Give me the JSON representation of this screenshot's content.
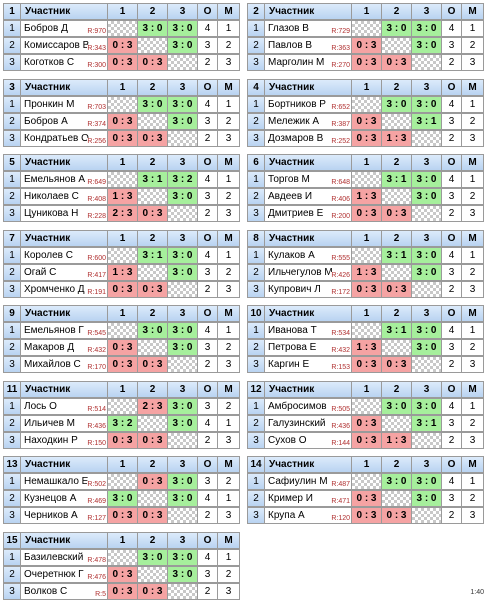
{
  "columns": [
    "Участник",
    "1",
    "2",
    "3",
    "О",
    "М"
  ],
  "groups": [
    {
      "number": "1",
      "players": [
        {
          "num": "1",
          "name": "Бобров Д",
          "rating": "R:970",
          "scores": [
            null,
            "3 : 0",
            "3 : 0"
          ],
          "points": "4",
          "place": "1"
        },
        {
          "num": "2",
          "name": "Комиссаров В",
          "rating": "R:343",
          "scores": [
            "0 : 3",
            null,
            "3 : 0"
          ],
          "points": "3",
          "place": "2"
        },
        {
          "num": "3",
          "name": "Коготков С",
          "rating": "R:300",
          "scores": [
            "0 : 3",
            "0 : 3",
            null
          ],
          "points": "2",
          "place": "3"
        }
      ]
    },
    {
      "number": "2",
      "players": [
        {
          "num": "1",
          "name": "Глазов В",
          "rating": "R:729",
          "scores": [
            null,
            "3 : 0",
            "3 : 0"
          ],
          "points": "4",
          "place": "1"
        },
        {
          "num": "2",
          "name": "Павлов В",
          "rating": "R:363",
          "scores": [
            "0 : 3",
            null,
            "3 : 0"
          ],
          "points": "3",
          "place": "2"
        },
        {
          "num": "3",
          "name": "Марголин М",
          "rating": "R:270",
          "scores": [
            "0 : 3",
            "0 : 3",
            null
          ],
          "points": "2",
          "place": "3"
        }
      ]
    },
    {
      "number": "3",
      "players": [
        {
          "num": "1",
          "name": "Пронкин М",
          "rating": "R:703",
          "scores": [
            null,
            "3 : 0",
            "3 : 0"
          ],
          "points": "4",
          "place": "1"
        },
        {
          "num": "2",
          "name": "Бобров А",
          "rating": "R:374",
          "scores": [
            "0 : 3",
            null,
            "3 : 0"
          ],
          "points": "3",
          "place": "2"
        },
        {
          "num": "3",
          "name": "Кондратьев О",
          "rating": "R:256",
          "scores": [
            "0 : 3",
            "0 : 3",
            null
          ],
          "points": "2",
          "place": "3"
        }
      ]
    },
    {
      "number": "4",
      "players": [
        {
          "num": "1",
          "name": "Бортников Р",
          "rating": "R:652",
          "scores": [
            null,
            "3 : 0",
            "3 : 0"
          ],
          "points": "4",
          "place": "1"
        },
        {
          "num": "2",
          "name": "Мележик А",
          "rating": "R:387",
          "scores": [
            "0 : 3",
            null,
            "3 : 1"
          ],
          "points": "3",
          "place": "2"
        },
        {
          "num": "3",
          "name": "Дозмаров В",
          "rating": "R:252",
          "scores": [
            "0 : 3",
            "1 : 3",
            null
          ],
          "points": "2",
          "place": "3"
        }
      ]
    },
    {
      "number": "5",
      "players": [
        {
          "num": "1",
          "name": "Емельянов А",
          "rating": "R:649",
          "scores": [
            null,
            "3 : 1",
            "3 : 2"
          ],
          "points": "4",
          "place": "1"
        },
        {
          "num": "2",
          "name": "Николаев С",
          "rating": "R:408",
          "scores": [
            "1 : 3",
            null,
            "3 : 0"
          ],
          "points": "3",
          "place": "2"
        },
        {
          "num": "3",
          "name": "Цуникова Н",
          "rating": "R:228",
          "scores": [
            "2 : 3",
            "0 : 3",
            null
          ],
          "points": "2",
          "place": "3"
        }
      ]
    },
    {
      "number": "6",
      "players": [
        {
          "num": "1",
          "name": "Торгов М",
          "rating": "R:648",
          "scores": [
            null,
            "3 : 1",
            "3 : 0"
          ],
          "points": "4",
          "place": "1"
        },
        {
          "num": "2",
          "name": "Авдеев И",
          "rating": "R:406",
          "scores": [
            "1 : 3",
            null,
            "3 : 0"
          ],
          "points": "3",
          "place": "2"
        },
        {
          "num": "3",
          "name": "Дмитриев Е",
          "rating": "R:200",
          "scores": [
            "0 : 3",
            "0 : 3",
            null
          ],
          "points": "2",
          "place": "3"
        }
      ]
    },
    {
      "number": "7",
      "players": [
        {
          "num": "1",
          "name": "Королев С",
          "rating": "R:600",
          "scores": [
            null,
            "3 : 1",
            "3 : 0"
          ],
          "points": "4",
          "place": "1"
        },
        {
          "num": "2",
          "name": "Огай С",
          "rating": "R:417",
          "scores": [
            "1 : 3",
            null,
            "3 : 0"
          ],
          "points": "3",
          "place": "2"
        },
        {
          "num": "3",
          "name": "Хромченко Д",
          "rating": "R:191",
          "scores": [
            "0 : 3",
            "0 : 3",
            null
          ],
          "points": "2",
          "place": "3"
        }
      ]
    },
    {
      "number": "8",
      "players": [
        {
          "num": "1",
          "name": "Кулаков А",
          "rating": "R:555",
          "scores": [
            null,
            "3 : 1",
            "3 : 0"
          ],
          "points": "4",
          "place": "1"
        },
        {
          "num": "2",
          "name": "Ильчегулов М",
          "rating": "R:426",
          "scores": [
            "1 : 3",
            null,
            "3 : 0"
          ],
          "points": "3",
          "place": "2"
        },
        {
          "num": "3",
          "name": "Купрович Л",
          "rating": "R:172",
          "scores": [
            "0 : 3",
            "0 : 3",
            null
          ],
          "points": "2",
          "place": "3"
        }
      ]
    },
    {
      "number": "9",
      "players": [
        {
          "num": "1",
          "name": "Емельянов Г",
          "rating": "R:545",
          "scores": [
            null,
            "3 : 0",
            "3 : 0"
          ],
          "points": "4",
          "place": "1"
        },
        {
          "num": "2",
          "name": "Макаров Д",
          "rating": "R:432",
          "scores": [
            "0 : 3",
            null,
            "3 : 0"
          ],
          "points": "3",
          "place": "2"
        },
        {
          "num": "3",
          "name": "Михайлов С",
          "rating": "R:170",
          "scores": [
            "0 : 3",
            "0 : 3",
            null
          ],
          "points": "2",
          "place": "3"
        }
      ]
    },
    {
      "number": "10",
      "players": [
        {
          "num": "1",
          "name": "Иванова Т",
          "rating": "R:534",
          "scores": [
            null,
            "3 : 1",
            "3 : 0"
          ],
          "points": "4",
          "place": "1"
        },
        {
          "num": "2",
          "name": "Петрова Е",
          "rating": "R:432",
          "scores": [
            "1 : 3",
            null,
            "3 : 0"
          ],
          "points": "3",
          "place": "2"
        },
        {
          "num": "3",
          "name": "Каргин Е",
          "rating": "R:153",
          "scores": [
            "0 : 3",
            "0 : 3",
            null
          ],
          "points": "2",
          "place": "3"
        }
      ]
    },
    {
      "number": "11",
      "players": [
        {
          "num": "1",
          "name": "Лось О",
          "rating": "R:514",
          "scores": [
            null,
            "2 : 3",
            "3 : 0"
          ],
          "points": "3",
          "place": "2"
        },
        {
          "num": "2",
          "name": "Ильичев М",
          "rating": "R:436",
          "scores": [
            "3 : 2",
            null,
            "3 : 0"
          ],
          "points": "4",
          "place": "1"
        },
        {
          "num": "3",
          "name": "Находкин Р",
          "rating": "R:150",
          "scores": [
            "0 : 3",
            "0 : 3",
            null
          ],
          "points": "2",
          "place": "3"
        }
      ]
    },
    {
      "number": "12",
      "players": [
        {
          "num": "1",
          "name": "Амбросимов",
          "rating": "R:505",
          "scores": [
            null,
            "3 : 0",
            "3 : 0"
          ],
          "points": "4",
          "place": "1"
        },
        {
          "num": "2",
          "name": "Галузинский",
          "rating": "R:436",
          "scores": [
            "0 : 3",
            null,
            "3 : 1"
          ],
          "points": "3",
          "place": "2"
        },
        {
          "num": "3",
          "name": "Сухов О",
          "rating": "R:144",
          "scores": [
            "0 : 3",
            "1 : 3",
            null
          ],
          "points": "2",
          "place": "3"
        }
      ]
    },
    {
      "number": "13",
      "players": [
        {
          "num": "1",
          "name": "Немашкало Е",
          "rating": "R:502",
          "scores": [
            null,
            "0 : 3",
            "3 : 0"
          ],
          "points": "3",
          "place": "2"
        },
        {
          "num": "2",
          "name": "Кузнецов А",
          "rating": "R:469",
          "scores": [
            "3 : 0",
            null,
            "3 : 0"
          ],
          "points": "4",
          "place": "1"
        },
        {
          "num": "3",
          "name": "Черников А",
          "rating": "R:127",
          "scores": [
            "0 : 3",
            "0 : 3",
            null
          ],
          "points": "2",
          "place": "3"
        }
      ]
    },
    {
      "number": "14",
      "players": [
        {
          "num": "1",
          "name": "Сафиулин М",
          "rating": "R:487",
          "scores": [
            null,
            "3 : 0",
            "3 : 0"
          ],
          "points": "4",
          "place": "1"
        },
        {
          "num": "2",
          "name": "Кример И",
          "rating": "R:471",
          "scores": [
            "0 : 3",
            null,
            "3 : 0"
          ],
          "points": "3",
          "place": "2"
        },
        {
          "num": "3",
          "name": "Крупа А",
          "rating": "R:120",
          "scores": [
            "0 : 3",
            "0 : 3",
            null
          ],
          "points": "2",
          "place": "3"
        }
      ]
    },
    {
      "number": "15",
      "players": [
        {
          "num": "1",
          "name": "Базилевский",
          "rating": "R:478",
          "scores": [
            null,
            "3 : 0",
            "3 : 0"
          ],
          "points": "4",
          "place": "1"
        },
        {
          "num": "2",
          "name": "Очеретнюк Г",
          "rating": "R:476",
          "scores": [
            "0 : 3",
            null,
            "3 : 0"
          ],
          "points": "3",
          "place": "2"
        },
        {
          "num": "3",
          "name": "Волков С",
          "rating": "R:5",
          "scores": [
            "0 : 3",
            "0 : 3",
            null
          ],
          "points": "2",
          "place": "3"
        }
      ]
    }
  ],
  "footer": "1:40"
}
